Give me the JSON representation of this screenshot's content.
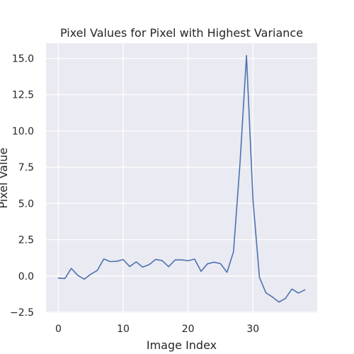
{
  "chart_data": {
    "type": "line",
    "title": "Pixel Values for Pixel with Highest Variance",
    "xlabel": "Image Index",
    "ylabel": "Pixel Value",
    "xlim": [
      -1.9,
      39.9
    ],
    "ylim": [
      -2.55,
      16.05
    ],
    "xticks": [
      0,
      10,
      20,
      30
    ],
    "yticks": [
      -2.5,
      0.0,
      2.5,
      5.0,
      7.5,
      10.0,
      12.5,
      15.0
    ],
    "ytick_labels": [
      "−2.5",
      "0.0",
      "2.5",
      "5.0",
      "7.5",
      "10.0",
      "12.5",
      "15.0"
    ],
    "grid": true,
    "series": [
      {
        "name": "",
        "color": "#4c72b0",
        "x": [
          0,
          1,
          2,
          3,
          4,
          5,
          6,
          7,
          8,
          9,
          10,
          11,
          12,
          13,
          14,
          15,
          16,
          17,
          18,
          19,
          20,
          21,
          22,
          23,
          24,
          25,
          26,
          27,
          28,
          29,
          30,
          31,
          32,
          33,
          34,
          35,
          36,
          37,
          38
        ],
        "values": [
          -0.15,
          -0.18,
          0.52,
          0.04,
          -0.22,
          0.12,
          0.38,
          1.17,
          0.99,
          1.01,
          1.13,
          0.65,
          0.97,
          0.61,
          0.78,
          1.14,
          1.06,
          0.64,
          1.1,
          1.11,
          1.05,
          1.16,
          0.32,
          0.84,
          0.95,
          0.85,
          0.25,
          1.67,
          7.75,
          15.2,
          5.26,
          -0.1,
          -1.17,
          -1.45,
          -1.8,
          -1.55,
          -0.9,
          -1.18,
          -0.96
        ]
      }
    ],
    "colors": {
      "plot_bg": "#eaeaf2",
      "grid": "#ffffff",
      "text": "#262626"
    }
  }
}
